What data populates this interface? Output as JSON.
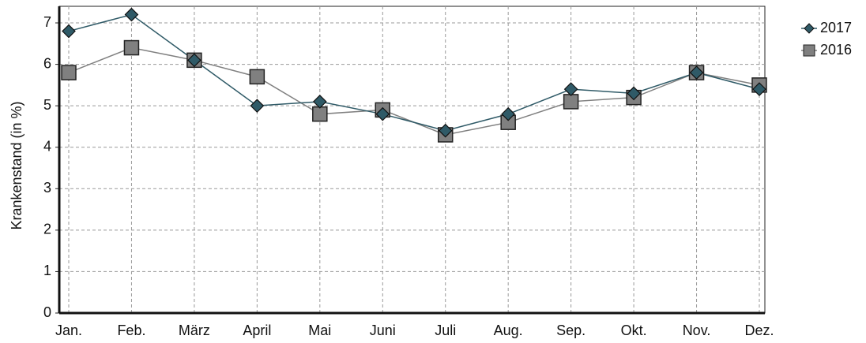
{
  "chart_data": {
    "type": "line",
    "y_label": "Krankenstand (in %)",
    "categories": [
      "Jan.",
      "Feb.",
      "März",
      "April",
      "Mai",
      "Juni",
      "Juli",
      "Aug.",
      "Sep.",
      "Okt.",
      "Nov.",
      "Dez."
    ],
    "series": [
      {
        "name": "2017",
        "color": "#2f5a67",
        "marker": "diamond",
        "values": [
          6.8,
          7.2,
          6.1,
          5.0,
          5.1,
          4.8,
          4.4,
          4.8,
          5.4,
          5.3,
          5.8,
          5.4
        ]
      },
      {
        "name": "2016",
        "color": "#808080",
        "marker": "square",
        "values": [
          5.8,
          6.4,
          6.1,
          5.7,
          4.8,
          4.9,
          4.3,
          4.6,
          5.1,
          5.2,
          5.8,
          5.5
        ]
      }
    ],
    "ylim": [
      0,
      7.4
    ],
    "yticks": [
      0,
      1,
      2,
      3,
      4,
      5,
      6,
      7
    ],
    "grid": true,
    "legend": "top-right"
  }
}
